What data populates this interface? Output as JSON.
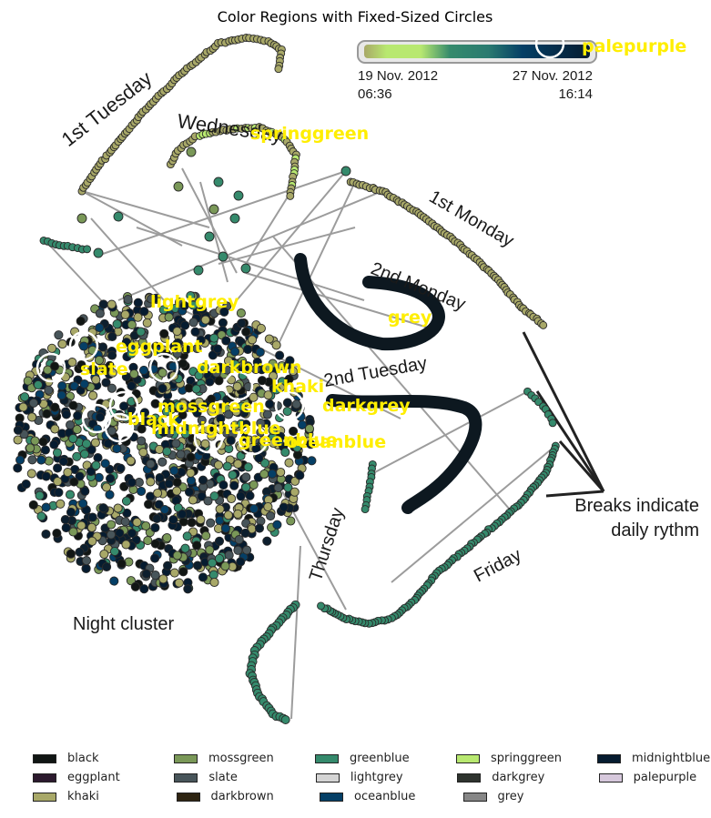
{
  "title": "Color Regions with Fixed-Sized Circles",
  "timebar": {
    "start_date": "19 Nov. 2012",
    "start_time": "06:36",
    "end_date": "27 Nov. 2012",
    "end_time": "16:14"
  },
  "day_labels": {
    "tuesday1": "1st Tuesday",
    "wednesday": "Wednesday",
    "monday1": "1st Monday",
    "monday2": "2nd Monday",
    "tuesday2": "2nd Tuesday",
    "thursday": "Thursday",
    "friday": "Friday",
    "night": "Night cluster",
    "breaks1": "Breaks indicate",
    "breaks2": "daily rythm"
  },
  "region_labels": {
    "palepurple": "palepurple",
    "springgreen": "springgreen",
    "lightgrey": "lightgrey",
    "grey": "grey",
    "eggplant": "eggplant",
    "slate": "slate",
    "darkbrown": "darkbrown",
    "khaki": "khaki",
    "darkgrey": "darkgrey",
    "mossgreen": "mossgreen",
    "black": "black",
    "midnightblue": "midnightblue",
    "greenblue": "greenblue",
    "oceanblue": "oceanblue"
  },
  "legend": [
    {
      "label": "black",
      "color": "#111614"
    },
    {
      "label": "eggplant",
      "color": "#2c1a2e"
    },
    {
      "label": "khaki",
      "color": "#a8a868"
    },
    {
      "label": "mossgreen",
      "color": "#7a9858"
    },
    {
      "label": "slate",
      "color": "#48555a"
    },
    {
      "label": "darkbrown",
      "color": "#2e2412"
    },
    {
      "label": "greenblue",
      "color": "#358a6c"
    },
    {
      "label": "lightgrey",
      "color": "#d4d4d4"
    },
    {
      "label": "oceanblue",
      "color": "#053f66"
    },
    {
      "label": "springgreen",
      "color": "#b8e870"
    },
    {
      "label": "darkgrey",
      "color": "#2e332e"
    },
    {
      "label": "grey",
      "color": "#868686"
    },
    {
      "label": "midnightblue",
      "color": "#061c30"
    },
    {
      "label": "palepurple",
      "color": "#d6c8dc"
    }
  ]
}
